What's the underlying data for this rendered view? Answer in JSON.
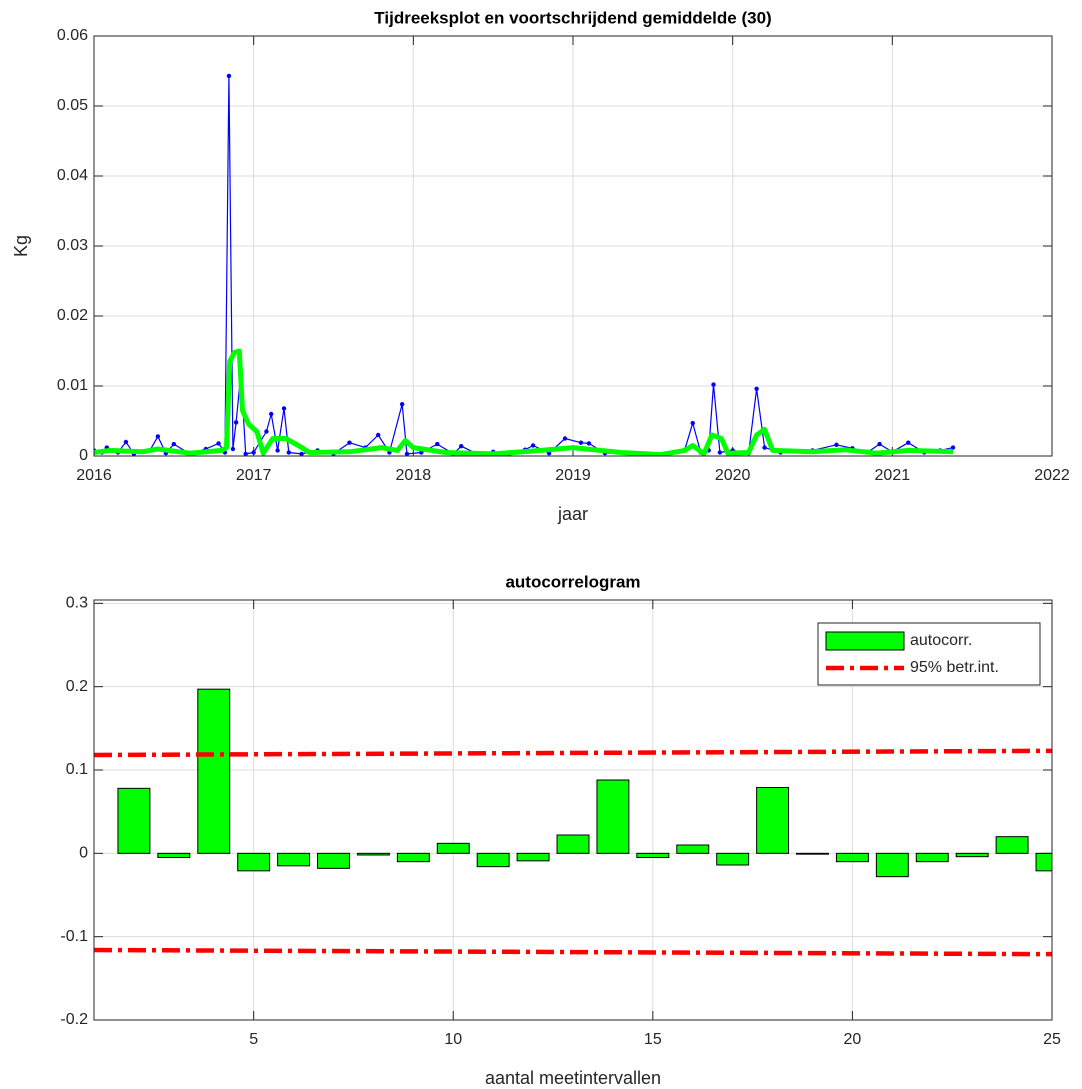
{
  "chart_data": [
    {
      "type": "line",
      "title": "Tijdreeksplot en voortschrijdend gemiddelde (30)",
      "x_label": "jaar",
      "y_label": "Kg",
      "xlim": [
        2016,
        2022
      ],
      "xticks": [
        2016,
        2017,
        2018,
        2019,
        2020,
        2021,
        2022
      ],
      "ylim": [
        0,
        0.06
      ],
      "yticks": [
        0,
        0.01,
        0.02,
        0.03,
        0.04,
        0.05,
        0.06
      ],
      "grid": true,
      "series": [
        {
          "color": "#0000ff",
          "marker": true,
          "x": [
            2016.0,
            2016.05,
            2016.08,
            2016.15,
            2016.2,
            2016.25,
            2016.35,
            2016.4,
            2016.45,
            2016.5,
            2016.6,
            2016.7,
            2016.78,
            2016.82,
            2016.845,
            2016.87,
            2016.89,
            2016.92,
            2016.95,
            2017.0,
            2017.08,
            2017.11,
            2017.15,
            2017.19,
            2017.22,
            2017.3,
            2017.4,
            2017.5,
            2017.6,
            2017.7,
            2017.78,
            2017.85,
            2017.93,
            2017.96,
            2018.05,
            2018.15,
            2018.25,
            2018.3,
            2018.4,
            2018.5,
            2018.6,
            2018.7,
            2018.75,
            2018.85,
            2018.95,
            2019.05,
            2019.1,
            2019.2,
            2019.4,
            2019.6,
            2019.7,
            2019.75,
            2019.8,
            2019.85,
            2019.88,
            2019.92,
            2020.0,
            2020.1,
            2020.15,
            2020.2,
            2020.3,
            2020.5,
            2020.65,
            2020.75,
            2020.85,
            2020.92,
            2021.0,
            2021.1,
            2021.2,
            2021.3,
            2021.38
          ],
          "values": [
            0.0008,
            0.0005,
            0.0012,
            0.0005,
            0.002,
            0.0003,
            0.0008,
            0.0028,
            0.0004,
            0.0017,
            0.0003,
            0.001,
            0.0018,
            0.0005,
            0.0543,
            0.001,
            0.0048,
            0.0118,
            0.0003,
            0.0005,
            0.0035,
            0.006,
            0.0008,
            0.0068,
            0.0005,
            0.0003,
            0.0008,
            0.0003,
            0.0019,
            0.0012,
            0.003,
            0.0005,
            0.0074,
            0.0003,
            0.0005,
            0.0017,
            0.0003,
            0.0014,
            0.0003,
            0.0006,
            0.0002,
            0.0009,
            0.0015,
            0.0004,
            0.0025,
            0.0019,
            0.0018,
            0.0004,
            0.0003,
            0.0004,
            0.0009,
            0.0047,
            0.0005,
            0.0008,
            0.0102,
            0.0005,
            0.0008,
            0.0004,
            0.0096,
            0.0012,
            0.0005,
            0.0008,
            0.0016,
            0.0011,
            0.0006,
            0.0017,
            0.0006,
            0.0019,
            0.0005,
            0.0008,
            0.0012
          ]
        },
        {
          "color": "#00ff00",
          "marker": false,
          "x": [
            2016.0,
            2016.1,
            2016.3,
            2016.4,
            2016.6,
            2016.8,
            2016.83,
            2016.85,
            2016.88,
            2016.91,
            2016.93,
            2016.97,
            2017.02,
            2017.06,
            2017.12,
            2017.2,
            2017.28,
            2017.35,
            2017.6,
            2017.8,
            2017.9,
            2017.95,
            2018.0,
            2018.2,
            2018.5,
            2018.8,
            2019.0,
            2019.3,
            2019.55,
            2019.7,
            2019.75,
            2019.82,
            2019.87,
            2019.93,
            2019.97,
            2020.1,
            2020.15,
            2020.2,
            2020.25,
            2020.5,
            2020.7,
            2020.9,
            2021.1,
            2021.38
          ],
          "values": [
            0.0005,
            0.0008,
            0.0006,
            0.001,
            0.0004,
            0.0008,
            0.0012,
            0.0135,
            0.0148,
            0.015,
            0.0065,
            0.0045,
            0.0035,
            0.0004,
            0.0025,
            0.0025,
            0.0015,
            0.0005,
            0.0006,
            0.0012,
            0.0008,
            0.0022,
            0.0012,
            0.0005,
            0.0003,
            0.0008,
            0.0012,
            0.0005,
            0.0002,
            0.0008,
            0.0015,
            0.0003,
            0.003,
            0.0025,
            0.0004,
            0.0005,
            0.003,
            0.0038,
            0.0008,
            0.0006,
            0.0009,
            0.0004,
            0.0008,
            0.0006
          ]
        }
      ]
    },
    {
      "type": "bar",
      "title": "autocorrelogram",
      "x_label": "aantal meetintervallen",
      "xlim": [
        1,
        25
      ],
      "xticks": [
        5,
        10,
        15,
        20,
        25
      ],
      "ylim": [
        -0.2,
        0.304
      ],
      "yticks": [
        -0.2,
        -0.1,
        0,
        0.1,
        0.2,
        0.3
      ],
      "grid": true,
      "legend": "upper right",
      "x": [
        1,
        2,
        3,
        4,
        5,
        6,
        7,
        8,
        9,
        10,
        11,
        12,
        13,
        14,
        15,
        16,
        17,
        18,
        19,
        20,
        21,
        22,
        23,
        24,
        25
      ],
      "series": [
        {
          "name": "autocorr.",
          "color": "#00ff00",
          "edgecolor": "#000000",
          "values": [
            0,
            0.078,
            -0.005,
            0.197,
            -0.021,
            -0.015,
            -0.018,
            -0.002,
            -0.01,
            0.012,
            -0.016,
            -0.009,
            0.022,
            0.088,
            -0.005,
            0.01,
            -0.014,
            0.079,
            -0.001,
            -0.01,
            -0.028,
            -0.01,
            -0.004,
            0.02,
            -0.021
          ]
        },
        {
          "name": "95% betr.int.",
          "color": "#ff0000",
          "type": "line",
          "x": [
            1,
            25
          ],
          "values": [
            0.118,
            0.123
          ],
          "lower": [
            -0.116,
            -0.121
          ]
        }
      ]
    }
  ]
}
